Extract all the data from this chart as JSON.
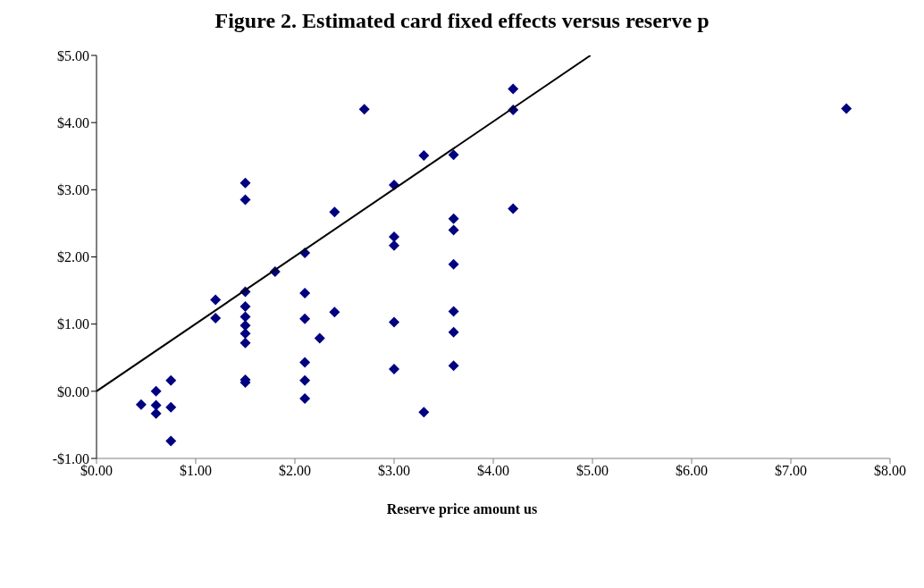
{
  "chart_data": {
    "type": "scatter",
    "title": "Figure 2. Estimated card fixed effects versus reserve p",
    "xlabel": "Reserve price amount us",
    "xlim": [
      0,
      8
    ],
    "ylim": [
      -1,
      5
    ],
    "xticks": [
      {
        "value": 0,
        "label": "$0.00"
      },
      {
        "value": 1,
        "label": "$1.00"
      },
      {
        "value": 2,
        "label": "$2.00"
      },
      {
        "value": 3,
        "label": "$3.00"
      },
      {
        "value": 4,
        "label": "$4.00"
      },
      {
        "value": 5,
        "label": "$5.00"
      },
      {
        "value": 6,
        "label": "$6.00"
      },
      {
        "value": 7,
        "label": "$7.00"
      },
      {
        "value": 8,
        "label": "$8.00"
      }
    ],
    "yticks": [
      {
        "value": -1,
        "label": "-$1.00"
      },
      {
        "value": 0,
        "label": "$0.00"
      },
      {
        "value": 1,
        "label": "$1.00"
      },
      {
        "value": 2,
        "label": "$2.00"
      },
      {
        "value": 3,
        "label": "$3.00"
      },
      {
        "value": 4,
        "label": "$4.00"
      },
      {
        "value": 5,
        "label": "$5.00"
      }
    ],
    "grid": false,
    "legend": false,
    "series": [
      {
        "marker": "diamond",
        "color": "#000080",
        "x": [
          0.45,
          0.6,
          0.6,
          0.6,
          0.75,
          0.75,
          0.75,
          1.2,
          1.2,
          1.5,
          1.5,
          1.5,
          1.5,
          1.5,
          1.5,
          1.5,
          1.5,
          1.5,
          1.5,
          1.8,
          2.1,
          2.1,
          2.1,
          2.1,
          2.1,
          2.1,
          2.25,
          2.4,
          2.4,
          2.7,
          3.0,
          3.0,
          3.0,
          3.0,
          3.0,
          3.3,
          3.3,
          3.6,
          3.6,
          3.6,
          3.6,
          3.6,
          3.6,
          3.6,
          4.2,
          4.2,
          4.2,
          7.56
        ],
        "values": [
          -0.2,
          0.0,
          -0.21,
          -0.33,
          0.16,
          -0.24,
          -0.74,
          1.36,
          1.09,
          3.1,
          2.85,
          1.48,
          1.26,
          1.11,
          0.98,
          0.86,
          0.72,
          0.17,
          0.13,
          1.78,
          2.06,
          1.46,
          1.08,
          0.43,
          0.16,
          -0.11,
          0.79,
          2.67,
          1.18,
          4.2,
          3.07,
          2.3,
          2.17,
          1.03,
          0.33,
          3.51,
          -0.31,
          3.52,
          2.57,
          2.4,
          1.89,
          1.19,
          0.88,
          0.38,
          4.5,
          4.19,
          2.72,
          4.21
        ]
      },
      {
        "type": "line",
        "marker": "none",
        "color": "#000000",
        "x": [
          0,
          4.98
        ],
        "values": [
          0,
          5
        ]
      }
    ]
  }
}
